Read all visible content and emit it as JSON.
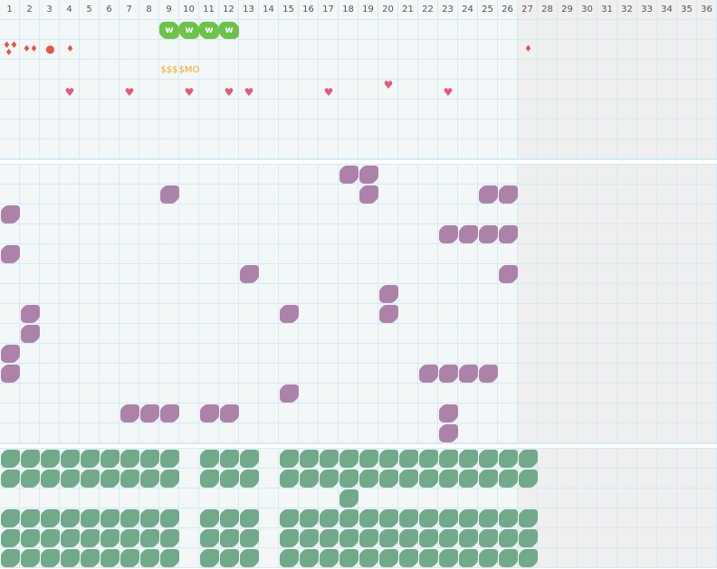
{
  "columns": [
    "1",
    "2",
    "3",
    "4",
    "5",
    "6",
    "7",
    "8",
    "9",
    "10",
    "11",
    "12",
    "13",
    "14",
    "15",
    "16",
    "17",
    "18",
    "19",
    "20",
    "21",
    "22",
    "23",
    "24",
    "25",
    "26",
    "27",
    "28",
    "29",
    "30",
    "31",
    "32",
    "33",
    "34",
    "35",
    "36"
  ],
  "current_day": 26,
  "colors": {
    "w_badge": "#6cc24a",
    "drop": "#e0574f",
    "money": "#f5a623",
    "heart": "#e05a7e",
    "purple": "#ad82a8",
    "green": "#72a98a",
    "future_bg": "#efefef",
    "grid_line": "#d6eaf3"
  },
  "section1": {
    "rows": 7,
    "marks": [
      {
        "row": 0,
        "col": 9,
        "type": "w-badge",
        "label": "w"
      },
      {
        "row": 0,
        "col": 10,
        "type": "w-badge",
        "label": "w"
      },
      {
        "row": 0,
        "col": 11,
        "type": "w-badge",
        "label": "w"
      },
      {
        "row": 0,
        "col": 12,
        "type": "w-badge",
        "label": "w"
      },
      {
        "row": 1,
        "col": 1,
        "type": "drops-3"
      },
      {
        "row": 1,
        "col": 2,
        "type": "drops-2"
      },
      {
        "row": 1,
        "col": 3,
        "type": "dot"
      },
      {
        "row": 1,
        "col": 4,
        "type": "drops-1"
      },
      {
        "row": 1,
        "col": 27,
        "type": "drops-1"
      },
      {
        "row": 2,
        "col": 9,
        "type": "text",
        "label": "$$$"
      },
      {
        "row": 2,
        "col": 10,
        "type": "text",
        "label": "$MO"
      },
      {
        "row": 3,
        "col": 4,
        "type": "heart"
      },
      {
        "row": 3,
        "col": 7,
        "type": "heart"
      },
      {
        "row": 3,
        "col": 10,
        "type": "heart"
      },
      {
        "row": 3,
        "col": 12,
        "type": "heart"
      },
      {
        "row": 3,
        "col": 13,
        "type": "heart"
      },
      {
        "row": 3,
        "col": 17,
        "type": "heart"
      },
      {
        "row": 3,
        "col": 20,
        "type": "heart-high"
      },
      {
        "row": 3,
        "col": 23,
        "type": "heart"
      }
    ]
  },
  "section2": {
    "rows": 14,
    "filled": [
      [
        18,
        19
      ],
      [
        9,
        19,
        25,
        26
      ],
      [
        1
      ],
      [
        23,
        24,
        25,
        26
      ],
      [
        1
      ],
      [
        13,
        26
      ],
      [
        20
      ],
      [
        2,
        15,
        20
      ],
      [
        2
      ],
      [
        1
      ],
      [
        1,
        22,
        23,
        24,
        25
      ],
      [
        15
      ],
      [
        7,
        8,
        9,
        11,
        12,
        23
      ],
      [
        23
      ]
    ]
  },
  "section3": {
    "rows": 6,
    "filled": [
      [
        1,
        2,
        3,
        4,
        5,
        6,
        7,
        8,
        9,
        11,
        12,
        13,
        15,
        16,
        17,
        18,
        19,
        20,
        21,
        22,
        23,
        24,
        25,
        26,
        27
      ],
      [
        1,
        2,
        3,
        4,
        5,
        6,
        7,
        8,
        9,
        11,
        12,
        13,
        15,
        16,
        17,
        18,
        19,
        20,
        21,
        22,
        23,
        24,
        25,
        26,
        27
      ],
      [
        18
      ],
      [
        1,
        2,
        3,
        4,
        5,
        6,
        7,
        8,
        9,
        11,
        12,
        13,
        15,
        16,
        17,
        18,
        19,
        20,
        21,
        22,
        23,
        24,
        25,
        26,
        27
      ],
      [
        1,
        2,
        3,
        4,
        5,
        6,
        7,
        8,
        9,
        11,
        12,
        13,
        15,
        16,
        17,
        18,
        19,
        20,
        21,
        22,
        23,
        24,
        25,
        26,
        27
      ],
      [
        1,
        2,
        3,
        4,
        5,
        6,
        7,
        8,
        9,
        11,
        12,
        13,
        15,
        16,
        17,
        18,
        19,
        20,
        21,
        22,
        23,
        24,
        25,
        26,
        27
      ]
    ]
  }
}
